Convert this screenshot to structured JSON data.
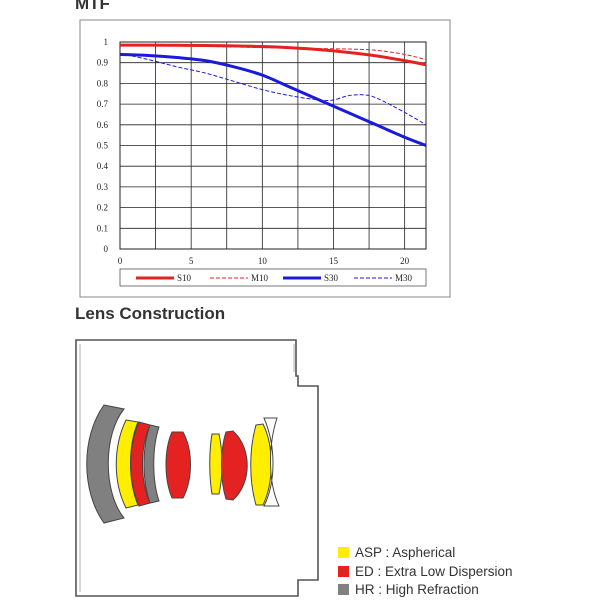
{
  "mtf_title": "MTF",
  "lens_title": "Lens Construction",
  "chart_data": {
    "type": "line",
    "x_ticks": [
      0,
      5,
      10,
      15,
      20
    ],
    "y_ticks": [
      "0",
      "0.1",
      "0.2",
      "0.3",
      "0.4",
      "0.5",
      "0.6",
      "0.7",
      "0.8",
      "0.9",
      "1"
    ],
    "xlim": [
      0,
      21.5
    ],
    "ylim": [
      0,
      1
    ],
    "grid": true,
    "legend_placement": "bottom",
    "series": [
      {
        "name": "S10",
        "color": "#e52222",
        "style": "solid",
        "x": [
          0,
          2,
          4,
          6,
          8,
          10,
          12,
          14,
          16,
          18,
          20,
          21.5
        ],
        "y": [
          0.985,
          0.985,
          0.984,
          0.983,
          0.981,
          0.978,
          0.972,
          0.963,
          0.95,
          0.933,
          0.91,
          0.89
        ]
      },
      {
        "name": "M10",
        "color": "#e52222",
        "style": "dashed",
        "x": [
          0,
          2,
          4,
          6,
          8,
          10,
          12,
          14,
          16,
          18,
          20,
          21.5
        ],
        "y": [
          0.985,
          0.984,
          0.982,
          0.979,
          0.976,
          0.973,
          0.97,
          0.968,
          0.966,
          0.96,
          0.94,
          0.915
        ]
      },
      {
        "name": "S30",
        "color": "#1a1adb",
        "style": "solid",
        "x": [
          0,
          2,
          4,
          6,
          8,
          10,
          12,
          14,
          16,
          18,
          20,
          21.5
        ],
        "y": [
          0.94,
          0.935,
          0.925,
          0.91,
          0.88,
          0.84,
          0.78,
          0.72,
          0.66,
          0.6,
          0.54,
          0.5
        ]
      },
      {
        "name": "M30",
        "color": "#1a1adb",
        "style": "dashed",
        "x": [
          0,
          2,
          4,
          6,
          8,
          10,
          12,
          14,
          15,
          16,
          17,
          18,
          20,
          21.5
        ],
        "y": [
          0.945,
          0.915,
          0.88,
          0.85,
          0.81,
          0.77,
          0.74,
          0.72,
          0.72,
          0.74,
          0.745,
          0.73,
          0.66,
          0.6
        ]
      }
    ]
  },
  "lens_legend": [
    {
      "code": "ASP",
      "label": "ASP : Aspherical",
      "color": "#ffee00"
    },
    {
      "code": "ED",
      "label": "ED : Extra Low Dispersion",
      "color": "#e52222"
    },
    {
      "code": "HR",
      "label": "HR : High Refraction",
      "color": "#808080"
    }
  ]
}
